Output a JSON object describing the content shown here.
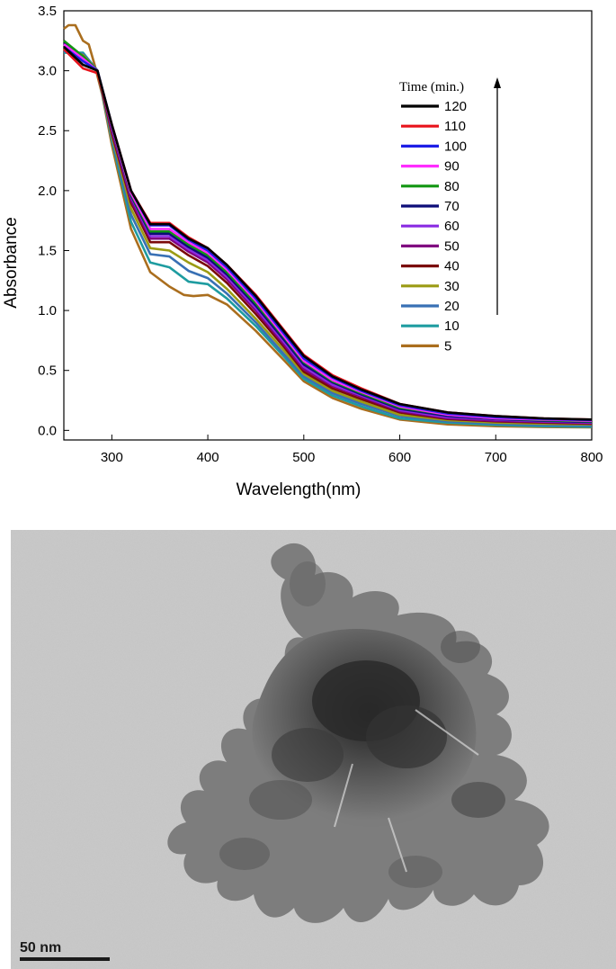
{
  "chart_data": {
    "type": "line",
    "xlabel": "Wavelength(nm)",
    "ylabel": "Absorbance",
    "xlim": [
      250,
      800
    ],
    "ylim": [
      -0.08,
      3.5
    ],
    "x_ticks": [
      300,
      400,
      500,
      600,
      700,
      800
    ],
    "y_ticks": [
      0.0,
      0.5,
      1.0,
      1.5,
      2.0,
      2.5,
      3.0,
      3.5
    ],
    "x_tick_labels": [
      "300",
      "400",
      "500",
      "600",
      "700",
      "800"
    ],
    "y_tick_labels": [
      "0.0",
      "0.5",
      "1.0",
      "1.5",
      "2.0",
      "2.5",
      "3.0",
      "3.5"
    ],
    "grid": false,
    "legend": {
      "title": "Time (min.)",
      "placement": "right",
      "arrow": "up"
    },
    "series": [
      {
        "name": "120",
        "color": "#000000",
        "x": [
          250,
          270,
          285,
          300,
          320,
          340,
          360,
          380,
          400,
          420,
          450,
          480,
          500,
          530,
          560,
          600,
          650,
          700,
          750,
          800
        ],
        "y": [
          3.2,
          3.05,
          3.0,
          2.55,
          2.0,
          1.72,
          1.72,
          1.6,
          1.52,
          1.38,
          1.12,
          0.82,
          0.62,
          0.45,
          0.34,
          0.22,
          0.15,
          0.12,
          0.1,
          0.09
        ]
      },
      {
        "name": "110",
        "color": "#e8141c",
        "x": [
          250,
          270,
          285,
          300,
          320,
          340,
          360,
          380,
          400,
          420,
          450,
          480,
          500,
          530,
          560,
          600,
          650,
          700,
          750,
          800
        ],
        "y": [
          3.18,
          3.02,
          2.98,
          2.55,
          2.0,
          1.73,
          1.73,
          1.61,
          1.52,
          1.38,
          1.13,
          0.83,
          0.63,
          0.46,
          0.35,
          0.22,
          0.15,
          0.12,
          0.1,
          0.09
        ]
      },
      {
        "name": "100",
        "color": "#1e1ee6",
        "x": [
          250,
          270,
          285,
          300,
          320,
          340,
          360,
          380,
          400,
          420,
          450,
          480,
          500,
          530,
          560,
          600,
          650,
          700,
          750,
          800
        ],
        "y": [
          3.2,
          3.08,
          3.0,
          2.55,
          2.0,
          1.71,
          1.71,
          1.59,
          1.5,
          1.36,
          1.1,
          0.8,
          0.6,
          0.44,
          0.33,
          0.21,
          0.14,
          0.11,
          0.095,
          0.085
        ]
      },
      {
        "name": "90",
        "color": "#ff2cff",
        "x": [
          250,
          270,
          285,
          300,
          320,
          340,
          360,
          380,
          400,
          420,
          450,
          480,
          500,
          530,
          560,
          600,
          650,
          700,
          750,
          800
        ],
        "y": [
          3.22,
          3.1,
          3.0,
          2.54,
          1.98,
          1.68,
          1.68,
          1.57,
          1.48,
          1.34,
          1.08,
          0.78,
          0.58,
          0.42,
          0.32,
          0.2,
          0.13,
          0.1,
          0.09,
          0.08
        ]
      },
      {
        "name": "80",
        "color": "#129612",
        "x": [
          250,
          270,
          285,
          300,
          320,
          340,
          360,
          380,
          400,
          420,
          450,
          480,
          500,
          530,
          560,
          600,
          650,
          700,
          750,
          800
        ],
        "y": [
          3.25,
          3.12,
          3.0,
          2.54,
          1.97,
          1.66,
          1.66,
          1.55,
          1.46,
          1.32,
          1.06,
          0.77,
          0.57,
          0.41,
          0.31,
          0.19,
          0.13,
          0.1,
          0.085,
          0.075
        ]
      },
      {
        "name": "70",
        "color": "#0c0c78",
        "x": [
          250,
          270,
          285,
          300,
          320,
          340,
          360,
          380,
          400,
          420,
          450,
          480,
          500,
          530,
          560,
          600,
          650,
          700,
          750,
          800
        ],
        "y": [
          3.23,
          3.12,
          3.0,
          2.53,
          1.96,
          1.64,
          1.64,
          1.53,
          1.44,
          1.3,
          1.04,
          0.75,
          0.55,
          0.4,
          0.3,
          0.18,
          0.12,
          0.095,
          0.08,
          0.07
        ]
      },
      {
        "name": "60",
        "color": "#8a2be2",
        "x": [
          250,
          270,
          285,
          300,
          320,
          340,
          360,
          380,
          400,
          420,
          450,
          480,
          500,
          530,
          560,
          600,
          650,
          700,
          750,
          800
        ],
        "y": [
          3.22,
          3.12,
          3.0,
          2.52,
          1.95,
          1.62,
          1.62,
          1.51,
          1.42,
          1.28,
          1.02,
          0.73,
          0.53,
          0.38,
          0.29,
          0.17,
          0.11,
          0.09,
          0.075,
          0.065
        ]
      },
      {
        "name": "50",
        "color": "#800080",
        "x": [
          250,
          270,
          285,
          300,
          320,
          340,
          360,
          380,
          400,
          420,
          450,
          480,
          500,
          530,
          560,
          600,
          650,
          700,
          750,
          800
        ],
        "y": [
          3.2,
          3.12,
          3.0,
          2.5,
          1.92,
          1.6,
          1.6,
          1.49,
          1.4,
          1.26,
          1.0,
          0.71,
          0.51,
          0.37,
          0.28,
          0.16,
          0.1,
          0.08,
          0.07,
          0.06
        ]
      },
      {
        "name": "40",
        "color": "#7a0a0a",
        "x": [
          250,
          270,
          285,
          300,
          320,
          340,
          360,
          380,
          400,
          420,
          450,
          480,
          500,
          530,
          560,
          600,
          650,
          700,
          750,
          800
        ],
        "y": [
          3.2,
          3.12,
          3.0,
          2.48,
          1.9,
          1.57,
          1.57,
          1.46,
          1.37,
          1.23,
          0.97,
          0.69,
          0.49,
          0.35,
          0.26,
          0.15,
          0.095,
          0.075,
          0.065,
          0.055
        ]
      },
      {
        "name": "30",
        "color": "#9b9b14",
        "x": [
          250,
          270,
          285,
          300,
          320,
          340,
          360,
          380,
          400,
          420,
          450,
          480,
          500,
          530,
          560,
          600,
          650,
          700,
          750,
          800
        ],
        "y": [
          3.18,
          3.13,
          3.0,
          2.46,
          1.85,
          1.52,
          1.5,
          1.4,
          1.32,
          1.18,
          0.93,
          0.66,
          0.47,
          0.33,
          0.24,
          0.13,
          0.085,
          0.065,
          0.055,
          0.05
        ]
      },
      {
        "name": "20",
        "color": "#3870b4",
        "x": [
          250,
          270,
          285,
          300,
          320,
          340,
          360,
          380,
          400,
          420,
          450,
          480,
          500,
          530,
          560,
          600,
          650,
          700,
          750,
          800
        ],
        "y": [
          3.16,
          3.14,
          3.0,
          2.44,
          1.8,
          1.47,
          1.45,
          1.33,
          1.27,
          1.14,
          0.9,
          0.63,
          0.45,
          0.31,
          0.22,
          0.12,
          0.075,
          0.055,
          0.045,
          0.04
        ]
      },
      {
        "name": "10",
        "color": "#1e9ca0",
        "x": [
          250,
          270,
          285,
          300,
          320,
          340,
          360,
          380,
          400,
          420,
          450,
          480,
          500,
          530,
          560,
          600,
          650,
          700,
          750,
          800
        ],
        "y": [
          3.15,
          3.15,
          3.0,
          2.42,
          1.74,
          1.4,
          1.36,
          1.24,
          1.22,
          1.1,
          0.87,
          0.61,
          0.43,
          0.29,
          0.2,
          0.1,
          0.065,
          0.045,
          0.035,
          0.03
        ]
      },
      {
        "name": "5",
        "color": "#aa6e1e",
        "x": [
          250,
          255,
          262,
          270,
          276,
          282,
          290,
          300,
          320,
          340,
          360,
          375,
          385,
          400,
          420,
          450,
          480,
          500,
          530,
          560,
          600,
          650,
          700,
          750,
          800
        ],
        "y": [
          3.35,
          3.38,
          3.38,
          3.25,
          3.22,
          3.05,
          2.8,
          2.38,
          1.68,
          1.32,
          1.2,
          1.13,
          1.12,
          1.13,
          1.05,
          0.83,
          0.58,
          0.41,
          0.27,
          0.18,
          0.09,
          0.05,
          0.035,
          0.028,
          0.025
        ]
      }
    ]
  },
  "micrograph": {
    "scale_bar_label": "50 nm"
  }
}
